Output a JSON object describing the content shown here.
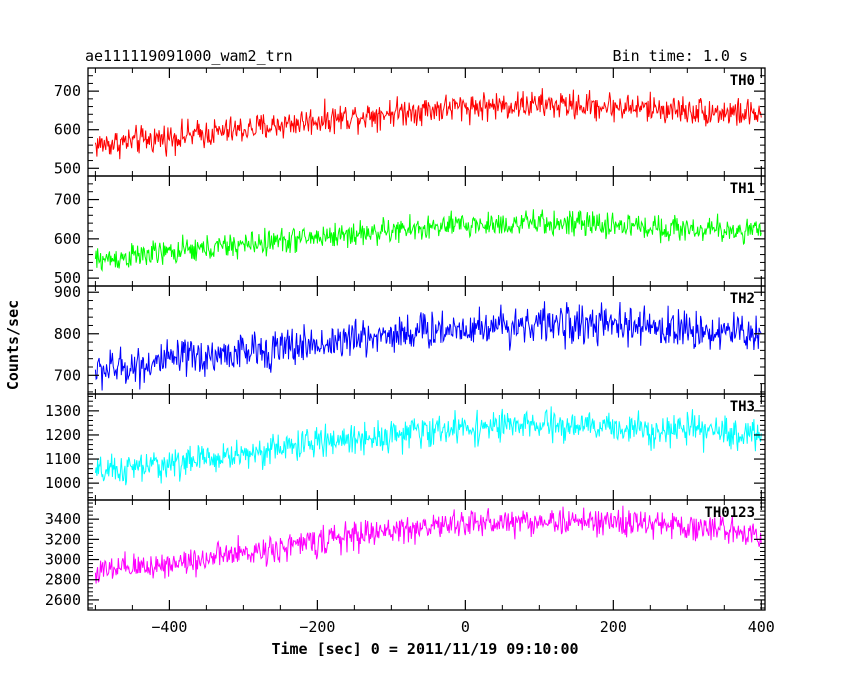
{
  "header": {
    "left_title": "ae111119091000_wam2_trn",
    "right_title": "Bin time: 1.0 s"
  },
  "chart_data": {
    "type": "line",
    "xlabel": "Time [sec] 0 = 2011/11/19 09:10:00",
    "ylabel": "Counts/sec",
    "xlim": [
      -510,
      405
    ],
    "x_ticks": [
      -400,
      -200,
      0,
      200,
      400
    ],
    "x_tick_labels": [
      "−400",
      "−200",
      "0",
      "200",
      "400"
    ],
    "bin_time_s": 1.0,
    "grid": false,
    "panels": [
      {
        "name": "TH0",
        "color": "#ff0000",
        "ylim": [
          480,
          760
        ],
        "y_ticks": [
          500,
          600,
          700
        ],
        "trend": {
          "x": [
            -500,
            -400,
            -300,
            -200,
            -100,
            0,
            100,
            200,
            300,
            400
          ],
          "y": [
            560,
            580,
            600,
            625,
            645,
            660,
            665,
            660,
            650,
            640
          ]
        },
        "noise_amplitude": 32
      },
      {
        "name": "TH1",
        "color": "#00ff00",
        "ylim": [
          480,
          760
        ],
        "y_ticks": [
          500,
          600,
          700
        ],
        "trend": {
          "x": [
            -500,
            -400,
            -300,
            -200,
            -100,
            0,
            100,
            200,
            300,
            400
          ],
          "y": [
            545,
            565,
            585,
            605,
            620,
            635,
            640,
            635,
            625,
            620
          ]
        },
        "noise_amplitude": 28
      },
      {
        "name": "TH2",
        "color": "#0000ff",
        "ylim": [
          655,
          915
        ],
        "y_ticks": [
          700,
          800,
          900
        ],
        "trend": {
          "x": [
            -500,
            -400,
            -300,
            -200,
            -100,
            0,
            100,
            200,
            300,
            400
          ],
          "y": [
            710,
            735,
            755,
            775,
            800,
            815,
            825,
            820,
            810,
            800
          ]
        },
        "noise_amplitude": 40
      },
      {
        "name": "TH3",
        "color": "#00ffff",
        "ylim": [
          930,
          1370
        ],
        "y_ticks": [
          1000,
          1100,
          1200,
          1300
        ],
        "trend": {
          "x": [
            -500,
            -400,
            -300,
            -200,
            -100,
            0,
            100,
            200,
            300,
            400
          ],
          "y": [
            1040,
            1080,
            1120,
            1170,
            1200,
            1230,
            1240,
            1230,
            1220,
            1200
          ]
        },
        "noise_amplitude": 55
      },
      {
        "name": "TH0123",
        "color": "#ff00ff",
        "ylim": [
          2500,
          3590
        ],
        "y_ticks": [
          2600,
          2800,
          3000,
          3200,
          3400
        ],
        "trend": {
          "x": [
            -500,
            -400,
            -300,
            -200,
            -100,
            0,
            100,
            200,
            300,
            400
          ],
          "y": [
            2870,
            2960,
            3060,
            3180,
            3290,
            3360,
            3380,
            3370,
            3330,
            3260
          ]
        },
        "noise_amplitude": 120
      }
    ]
  }
}
